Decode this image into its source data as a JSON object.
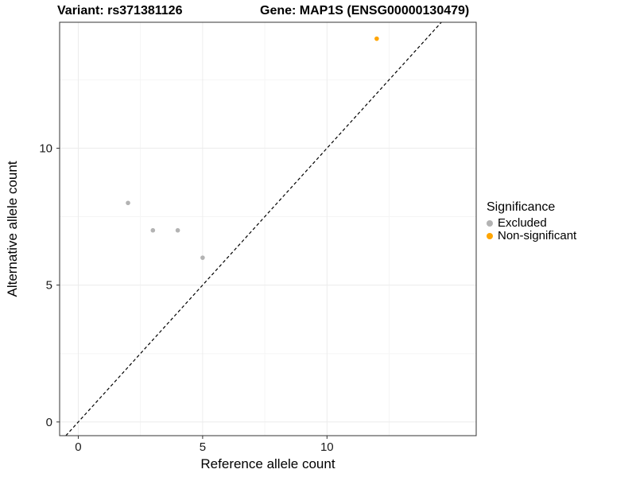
{
  "titles": {
    "variant": "Variant: rs371381126",
    "gene": "Gene: MAP1S (ENSG00000130479)"
  },
  "chart_data": {
    "type": "scatter",
    "title_left": "Variant: rs371381126",
    "title_right": "Gene: MAP1S (ENSG00000130479)",
    "xlabel": "Reference allele count",
    "ylabel": "Alternative allele count",
    "x_ticks": [
      0,
      5,
      10
    ],
    "y_ticks": [
      0,
      5,
      10
    ],
    "xlim": [
      -0.75,
      16
    ],
    "ylim": [
      -0.5,
      14.6
    ],
    "grid": true,
    "reference_line": {
      "type": "identity y=x",
      "style": "dashed",
      "color": "#000000"
    },
    "legend": {
      "title": "Significance",
      "position": "right"
    },
    "series": [
      {
        "name": "Excluded",
        "color": "#b3b3b3",
        "points": [
          {
            "x": 2,
            "y": 8
          },
          {
            "x": 3,
            "y": 7
          },
          {
            "x": 4,
            "y": 7
          },
          {
            "x": 5,
            "y": 6
          }
        ]
      },
      {
        "name": "Non-significant",
        "color": "#FFA500",
        "points": [
          {
            "x": 12,
            "y": 14
          }
        ]
      }
    ],
    "colors": {
      "panel_border": "#333333",
      "grid_major": "#ececec",
      "grid_minor": "#f5f5f5",
      "axis_text": "#1a1a1a"
    }
  }
}
